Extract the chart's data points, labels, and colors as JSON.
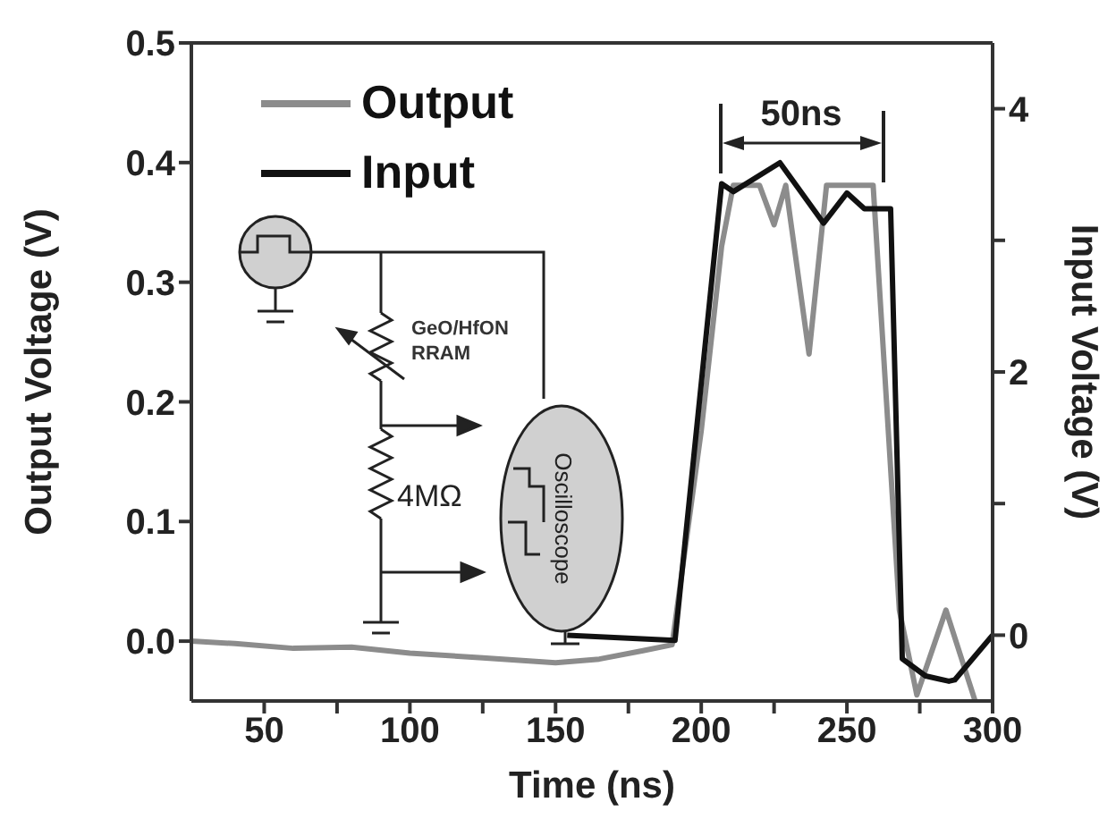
{
  "chart_data": {
    "type": "line",
    "xlabel": "Time (ns)",
    "ylabel": "Output Voltage (V)",
    "y2label": "Input Voltage (V)",
    "xlim": [
      25,
      300
    ],
    "xticks": [
      50,
      {
        "value": 75,
        "label": null
      },
      100,
      {
        "value": 125,
        "label": null
      },
      150,
      {
        "value": 175,
        "label": null
      },
      200,
      {
        "value": 225,
        "label": null
      },
      250,
      {
        "value": 275,
        "label": null
      },
      300
    ],
    "ylim": [
      -0.05,
      0.5
    ],
    "yticks": [
      {
        "value": 0,
        "label": "0.0"
      },
      0.1,
      0.2,
      0.3,
      0.4,
      0.5
    ],
    "y2lim": [
      -0.5,
      4.5
    ],
    "y2ticks": [
      0,
      {
        "value": 1,
        "label": null
      },
      2,
      {
        "value": 3,
        "label": null
      },
      4
    ],
    "legend": "top left",
    "grid": false,
    "marker": "none",
    "line_style": "solid",
    "series": [
      {
        "name": "Output",
        "color": "#8c8c8c",
        "x": [
          25,
          40,
          60,
          80,
          100,
          125,
          150,
          165,
          180,
          190,
          200,
          207,
          211,
          220,
          225,
          229,
          237,
          243,
          248,
          259,
          268,
          274,
          284,
          294
        ],
        "values": [
          0,
          -0.002,
          -0.006,
          -0.005,
          -0.01,
          -0.014,
          -0.018,
          -0.015,
          -0.008,
          -0.003,
          0.176,
          0.33,
          0.381,
          0.381,
          0.348,
          0.381,
          0.24,
          0.381,
          0.381,
          0.381,
          0.026,
          -0.045,
          0.026,
          -0.05
        ]
      },
      {
        "name": "Input",
        "color": "#111111",
        "axis": "y2",
        "x": [
          154,
          191,
          207,
          211,
          227,
          242,
          250,
          256,
          265,
          269,
          277,
          285,
          287,
          300
        ],
        "values": [
          0,
          -0.04,
          3.43,
          3.37,
          3.59,
          3.13,
          3.36,
          3.24,
          3.24,
          -0.18,
          -0.31,
          -0.35,
          -0.34,
          0
        ]
      }
    ],
    "annotations": [
      "50ns",
      "GeO/HfON RRAM",
      "4MΩ",
      "Oscilloscope"
    ]
  }
}
